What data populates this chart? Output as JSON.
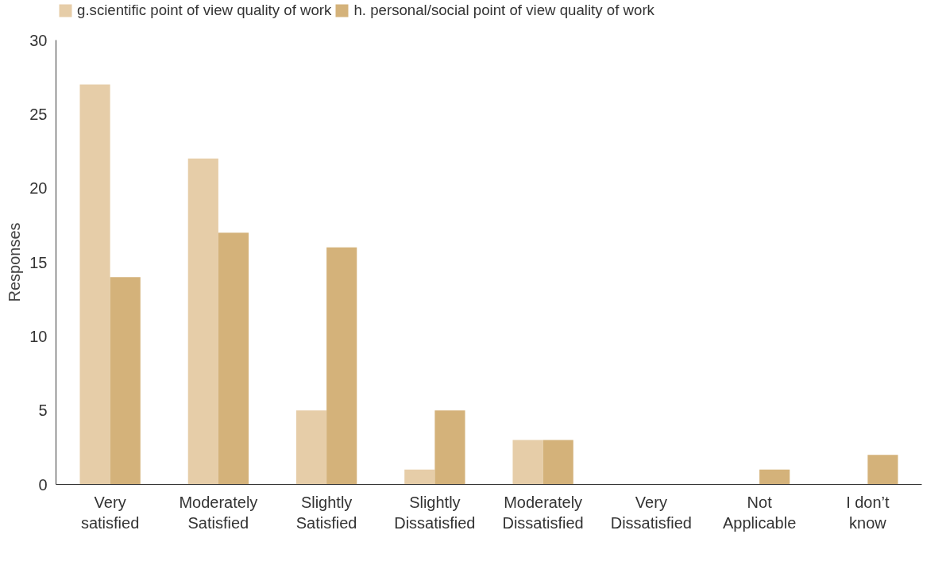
{
  "chart_data": {
    "type": "bar",
    "ylabel": "Responses",
    "categories": [
      "Very\nsatisfied",
      "Moderately\nSatisfied",
      "Slightly\nSatisfied",
      "Slightly\nDissatisfied",
      "Moderately\nDissatisfied",
      "Very\nDissatisfied",
      "Not\nApplicable",
      "I don’t\nknow"
    ],
    "series": [
      {
        "name": "g.scientific point of view quality of work",
        "color": "#e6cda8",
        "values": [
          27,
          22,
          5,
          1,
          3,
          0,
          0,
          0
        ]
      },
      {
        "name": "h. personal/social point of view quality of work",
        "color": "#d4b27a",
        "values": [
          14,
          17,
          16,
          5,
          3,
          0,
          1,
          2
        ]
      }
    ],
    "ylim": [
      0,
      30
    ],
    "yticks": [
      0,
      5,
      10,
      15,
      20,
      25,
      30
    ],
    "grid": false,
    "legend": "top left"
  }
}
